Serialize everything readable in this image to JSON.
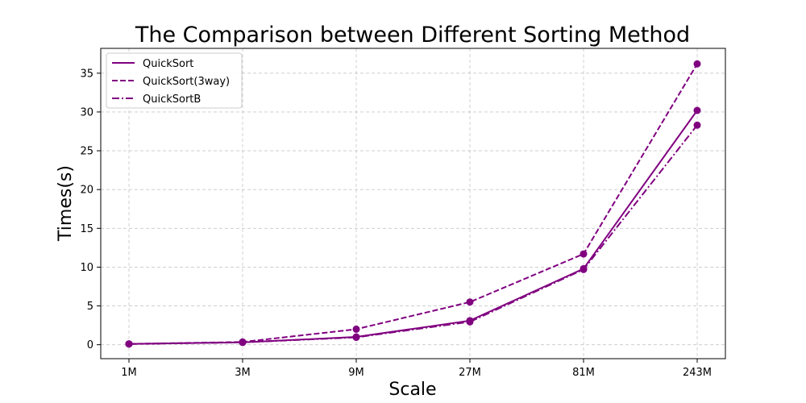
{
  "chart_data": {
    "type": "line",
    "title": "The Comparison between Different Sorting Method",
    "xlabel": "Scale",
    "ylabel": "Times(s)",
    "categories": [
      "1M",
      "3M",
      "9M",
      "27M",
      "81M",
      "243M"
    ],
    "ylim": [
      -1.8,
      38.2
    ],
    "yticks": [
      0,
      5,
      10,
      15,
      20,
      25,
      30,
      35
    ],
    "grid": true,
    "legend": "top-left",
    "color": "#800080",
    "series": [
      {
        "name": "QuickSort",
        "style": "solid",
        "values": [
          0.1,
          0.3,
          1.0,
          3.1,
          9.8,
          30.2
        ]
      },
      {
        "name": "QuickSort(3way)",
        "style": "dashed",
        "values": [
          0.1,
          0.35,
          2.0,
          5.5,
          11.7,
          36.2
        ]
      },
      {
        "name": "QuickSortB",
        "style": "dashdot",
        "values": [
          0.1,
          0.3,
          0.95,
          2.95,
          9.7,
          28.3
        ]
      }
    ]
  }
}
